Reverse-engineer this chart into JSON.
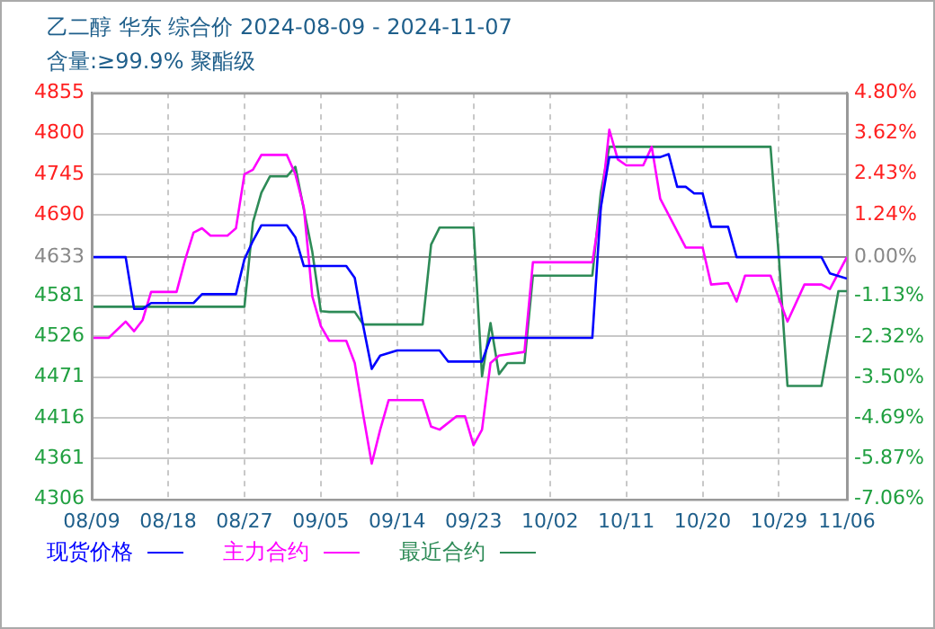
{
  "chart_data": {
    "type": "line",
    "title": "乙二醇 华东 综合价 2024-08-09 - 2024-11-07",
    "subtitle": "含量:≥99.9% 聚酯级",
    "xlim": [
      "2024-08-09",
      "2024-11-06"
    ],
    "xticks": [
      {
        "value": "2024-08-09",
        "label": "08/09"
      },
      {
        "value": "2024-08-18",
        "label": "08/18"
      },
      {
        "value": "2024-08-27",
        "label": "08/27"
      },
      {
        "value": "2024-09-05",
        "label": "09/05"
      },
      {
        "value": "2024-09-14",
        "label": "09/14"
      },
      {
        "value": "2024-09-23",
        "label": "09/23"
      },
      {
        "value": "2024-10-02",
        "label": "10/02"
      },
      {
        "value": "2024-10-11",
        "label": "10/11"
      },
      {
        "value": "2024-10-20",
        "label": "10/20"
      },
      {
        "value": "2024-10-29",
        "label": "10/29"
      },
      {
        "value": "2024-11-06",
        "label": "11/06"
      }
    ],
    "ylim": [
      4306,
      4855
    ],
    "yticks": [
      4306,
      4361,
      4416,
      4471,
      4526,
      4581,
      4633,
      4690,
      4745,
      4800,
      4855
    ],
    "y2lim": [
      -7.06,
      4.8
    ],
    "y2ticks": [
      {
        "value": -7.06,
        "label": "-7.06%"
      },
      {
        "value": -5.87,
        "label": "-5.87%"
      },
      {
        "value": -4.69,
        "label": "-4.69%"
      },
      {
        "value": -3.5,
        "label": "-3.50%"
      },
      {
        "value": -2.32,
        "label": "-2.32%"
      },
      {
        "value": -1.13,
        "label": "-1.13%"
      },
      {
        "value": 0,
        "label": "0.00%"
      },
      {
        "value": 1.24,
        "label": "1.24%"
      },
      {
        "value": 2.43,
        "label": "2.43%"
      },
      {
        "value": 3.62,
        "label": "3.62%"
      },
      {
        "value": 4.8,
        "label": "4.80%"
      }
    ],
    "grid": true,
    "legend": "bottom",
    "marker": "none",
    "line_style": "solid",
    "series": [
      {
        "name": "现货价格",
        "color": "#0000ff",
        "x": [
          "2024-08-09",
          "2024-08-13",
          "2024-08-14",
          "2024-08-15",
          "2024-08-16",
          "2024-08-21",
          "2024-08-22",
          "2024-08-26",
          "2024-08-27",
          "2024-08-28",
          "2024-08-29",
          "2024-09-01",
          "2024-09-02",
          "2024-09-03",
          "2024-09-08",
          "2024-09-09",
          "2024-09-10",
          "2024-09-11",
          "2024-09-12",
          "2024-09-14",
          "2024-09-19",
          "2024-09-20",
          "2024-09-24",
          "2024-09-25",
          "2024-10-07",
          "2024-10-08",
          "2024-10-09",
          "2024-10-15",
          "2024-10-16",
          "2024-10-17",
          "2024-10-18",
          "2024-10-19",
          "2024-10-20",
          "2024-10-21",
          "2024-10-23",
          "2024-10-24",
          "2024-11-03",
          "2024-11-04",
          "2024-11-06"
        ],
        "values": [
          4633,
          4633,
          4563,
          4563,
          4571,
          4571,
          4583,
          4583,
          4630,
          4655,
          4676,
          4676,
          4660,
          4621,
          4621,
          4605,
          4540,
          4482,
          4500,
          4507,
          4507,
          4492,
          4492,
          4524,
          4524,
          4700,
          4768,
          4768,
          4772,
          4728,
          4728,
          4719,
          4719,
          4674,
          4674,
          4633,
          4633,
          4611,
          4604
        ]
      },
      {
        "name": "主力合约",
        "color": "#ff00ff",
        "x": [
          "2024-08-09",
          "2024-08-11",
          "2024-08-13",
          "2024-08-14",
          "2024-08-15",
          "2024-08-16",
          "2024-08-19",
          "2024-08-20",
          "2024-08-21",
          "2024-08-22",
          "2024-08-23",
          "2024-08-25",
          "2024-08-26",
          "2024-08-27",
          "2024-08-28",
          "2024-08-29",
          "2024-09-01",
          "2024-09-02",
          "2024-09-03",
          "2024-09-04",
          "2024-09-05",
          "2024-09-06",
          "2024-09-08",
          "2024-09-09",
          "2024-09-10",
          "2024-09-11",
          "2024-09-12",
          "2024-09-13",
          "2024-09-17",
          "2024-09-18",
          "2024-09-19",
          "2024-09-21",
          "2024-09-22",
          "2024-09-23",
          "2024-09-24",
          "2024-09-25",
          "2024-09-26",
          "2024-09-29",
          "2024-09-30",
          "2024-10-07",
          "2024-10-08",
          "2024-10-09",
          "2024-10-10",
          "2024-10-11",
          "2024-10-13",
          "2024-10-14",
          "2024-10-15",
          "2024-10-17",
          "2024-10-18",
          "2024-10-20",
          "2024-10-21",
          "2024-10-23",
          "2024-10-24",
          "2024-10-25",
          "2024-10-28",
          "2024-10-30",
          "2024-11-01",
          "2024-11-03",
          "2024-11-04",
          "2024-11-06"
        ],
        "values": [
          4524,
          4524,
          4546,
          4533,
          4548,
          4586,
          4586,
          4629,
          4666,
          4672,
          4662,
          4662,
          4672,
          4745,
          4751,
          4771,
          4771,
          4745,
          4700,
          4580,
          4540,
          4520,
          4520,
          4490,
          4420,
          4354,
          4400,
          4440,
          4440,
          4404,
          4400,
          4418,
          4418,
          4379,
          4400,
          4490,
          4500,
          4505,
          4626,
          4626,
          4700,
          4805,
          4765,
          4757,
          4757,
          4782,
          4712,
          4668,
          4646,
          4646,
          4596,
          4598,
          4573,
          4608,
          4608,
          4546,
          4596,
          4596,
          4590,
          4633
        ]
      },
      {
        "name": "最近合约",
        "color": "#2e8b57",
        "x": [
          "2024-08-09",
          "2024-08-27",
          "2024-08-28",
          "2024-08-29",
          "2024-08-30",
          "2024-09-01",
          "2024-09-02",
          "2024-09-04",
          "2024-09-05",
          "2024-09-06",
          "2024-09-09",
          "2024-09-10",
          "2024-09-17",
          "2024-09-18",
          "2024-09-19",
          "2024-09-23",
          "2024-09-24",
          "2024-09-25",
          "2024-09-26",
          "2024-09-27",
          "2024-09-29",
          "2024-09-30",
          "2024-10-07",
          "2024-10-08",
          "2024-10-09",
          "2024-10-28",
          "2024-10-29",
          "2024-10-30",
          "2024-11-03",
          "2024-11-05",
          "2024-11-06"
        ],
        "values": [
          4566,
          4566,
          4680,
          4720,
          4742,
          4742,
          4755,
          4640,
          4560,
          4559,
          4559,
          4542,
          4542,
          4650,
          4673,
          4673,
          4472,
          4544,
          4475,
          4490,
          4490,
          4608,
          4608,
          4720,
          4782,
          4782,
          4630,
          4459,
          4459,
          4587,
          4587
        ]
      }
    ]
  }
}
